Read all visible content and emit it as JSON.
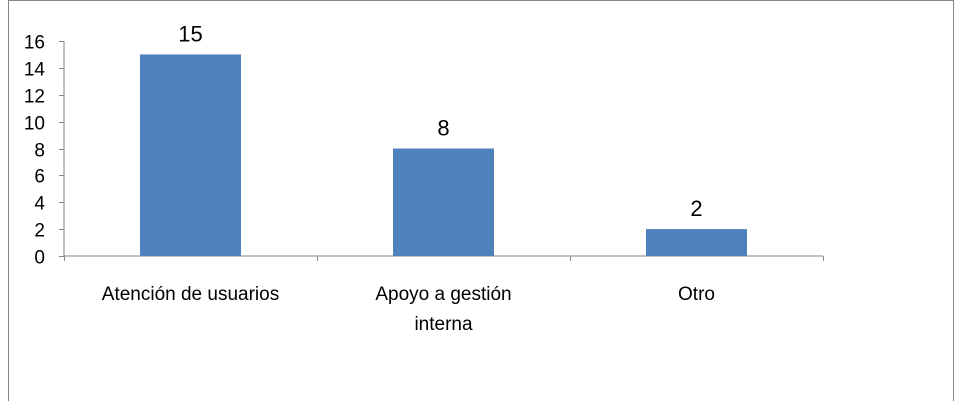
{
  "chart_data": {
    "type": "bar",
    "title": "",
    "xlabel": "",
    "ylabel": "",
    "categories": [
      "Atención de usuarios",
      "Apoyo a gestión interna",
      "Otro"
    ],
    "category_label_lines": [
      [
        "Atención de usuarios"
      ],
      [
        "Apoyo a gestión",
        "interna"
      ],
      [
        "Otro"
      ]
    ],
    "series": [
      {
        "values": [
          15,
          8,
          2
        ]
      }
    ],
    "data_labels": [
      "15",
      "8",
      "2"
    ],
    "ylim": [
      0,
      16
    ],
    "yticks": [
      0,
      2,
      4,
      6,
      8,
      10,
      12,
      14,
      16
    ],
    "grid": false,
    "legend": "none",
    "bar_color": "#4F81BD"
  }
}
